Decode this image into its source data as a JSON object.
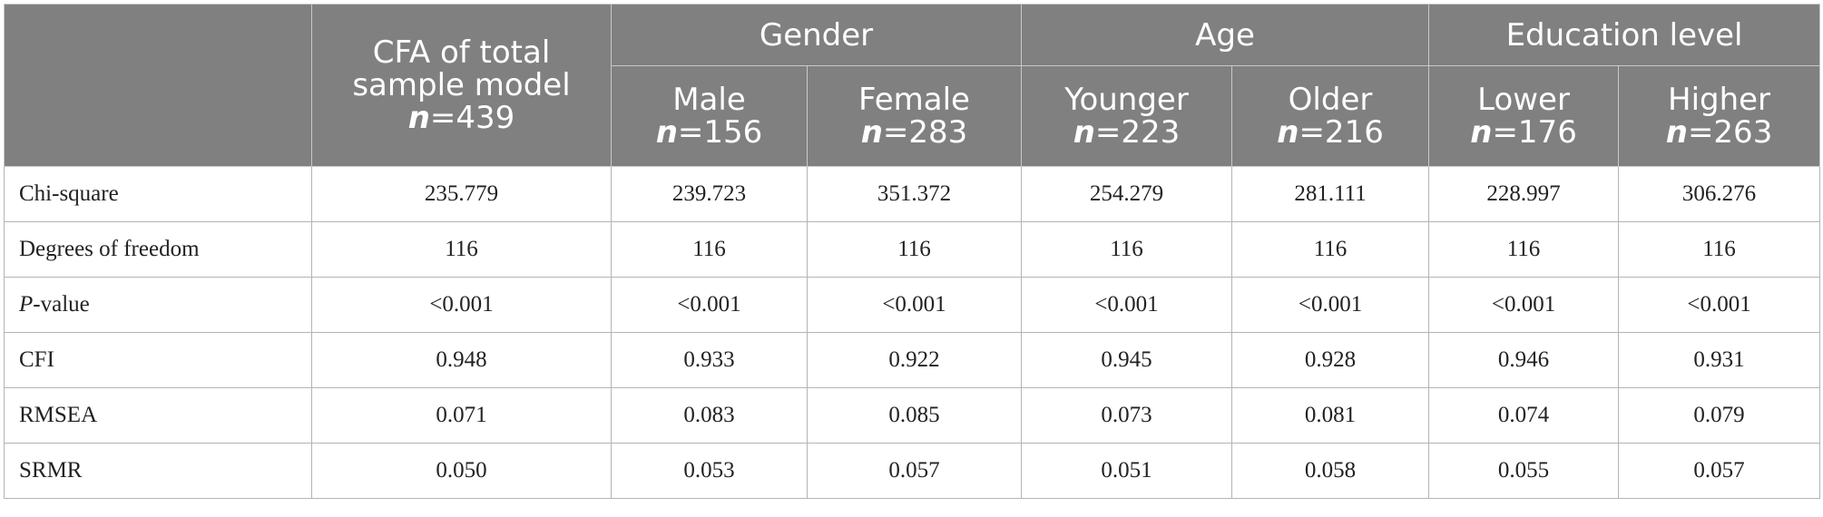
{
  "header": {
    "corner": "",
    "total": {
      "line1": "CFA of total",
      "line2": "sample model",
      "n_label": "n",
      "n_value": "=439"
    },
    "groups": [
      {
        "label": "Gender",
        "subs": [
          {
            "label": "Male",
            "n_label": "n",
            "n_value": "=156"
          },
          {
            "label": "Female",
            "n_label": "n",
            "n_value": "=283"
          }
        ]
      },
      {
        "label": "Age",
        "subs": [
          {
            "label": "Younger",
            "n_label": "n",
            "n_value": "=223"
          },
          {
            "label": "Older",
            "n_label": "n",
            "n_value": "=216"
          }
        ]
      },
      {
        "label": "Education level",
        "subs": [
          {
            "label": "Lower",
            "n_label": "n",
            "n_value": "=176"
          },
          {
            "label": "Higher",
            "n_label": "n",
            "n_value": "=263"
          }
        ]
      }
    ]
  },
  "rows": [
    {
      "label": "Chi-square",
      "label_italic": "",
      "label_rest": "",
      "values": [
        "235.779",
        "239.723",
        "351.372",
        "254.279",
        "281.111",
        "228.997",
        "306.276"
      ]
    },
    {
      "label": "Degrees of freedom",
      "label_italic": "",
      "label_rest": "",
      "values": [
        "116",
        "116",
        "116",
        "116",
        "116",
        "116",
        "116"
      ]
    },
    {
      "label": "",
      "label_italic": "P",
      "label_rest": "-value",
      "values": [
        "<0.001",
        "<0.001",
        "<0.001",
        "<0.001",
        "<0.001",
        "<0.001",
        "<0.001"
      ]
    },
    {
      "label": "CFI",
      "label_italic": "",
      "label_rest": "",
      "values": [
        "0.948",
        "0.933",
        "0.922",
        "0.945",
        "0.928",
        "0.946",
        "0.931"
      ]
    },
    {
      "label": "RMSEA",
      "label_italic": "",
      "label_rest": "",
      "values": [
        "0.071",
        "0.083",
        "0.085",
        "0.073",
        "0.081",
        "0.074",
        "0.079"
      ]
    },
    {
      "label": "SRMR",
      "label_italic": "",
      "label_rest": "",
      "values": [
        "0.050",
        "0.053",
        "0.057",
        "0.051",
        "0.058",
        "0.055",
        "0.057"
      ]
    }
  ]
}
